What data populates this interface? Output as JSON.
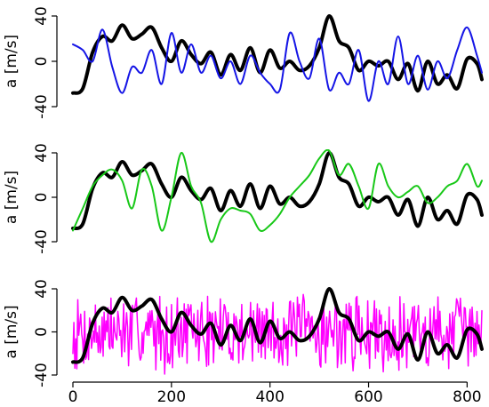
{
  "chart_data": [
    {
      "type": "line",
      "ylabel": "a [m/s]",
      "ylim": [
        -40,
        40
      ],
      "yticks": [
        -40,
        0,
        40
      ],
      "xlim": [
        0,
        830
      ],
      "series": [
        {
          "color": "#000000",
          "width": 4,
          "x": [
            0,
            20,
            40,
            60,
            80,
            100,
            120,
            140,
            160,
            180,
            200,
            220,
            240,
            260,
            280,
            300,
            320,
            340,
            360,
            380,
            400,
            420,
            440,
            460,
            480,
            500,
            520,
            540,
            560,
            580,
            600,
            620,
            640,
            660,
            680,
            700,
            720,
            740,
            760,
            780,
            800,
            820,
            830
          ],
          "y": [
            -28,
            -24,
            8,
            22,
            18,
            32,
            20,
            24,
            30,
            12,
            0,
            18,
            6,
            -2,
            8,
            -12,
            6,
            -8,
            12,
            -10,
            10,
            -6,
            0,
            -8,
            -4,
            12,
            40,
            18,
            12,
            -8,
            0,
            -4,
            0,
            -16,
            -2,
            -26,
            0,
            -20,
            -12,
            -24,
            2,
            -2,
            -16
          ]
        },
        {
          "color": "#1515e6",
          "width": 2,
          "x": [
            0,
            20,
            40,
            60,
            80,
            100,
            120,
            140,
            160,
            180,
            200,
            220,
            240,
            260,
            280,
            300,
            320,
            340,
            360,
            380,
            400,
            420,
            440,
            460,
            480,
            500,
            520,
            540,
            560,
            580,
            600,
            620,
            640,
            660,
            680,
            700,
            720,
            740,
            760,
            780,
            800,
            820,
            830
          ],
          "y": [
            15,
            10,
            0,
            28,
            -5,
            -28,
            -5,
            -10,
            10,
            -20,
            25,
            -10,
            15,
            -10,
            5,
            -15,
            0,
            -20,
            5,
            -10,
            -20,
            -25,
            25,
            0,
            -15,
            20,
            -25,
            -10,
            -20,
            10,
            -35,
            0,
            -20,
            22,
            -20,
            5,
            -25,
            0,
            -15,
            10,
            30,
            5,
            -10
          ]
        }
      ]
    },
    {
      "type": "line",
      "ylabel": "a [m/s]",
      "ylim": [
        -40,
        40
      ],
      "yticks": [
        -40,
        0,
        40
      ],
      "xlim": [
        0,
        830
      ],
      "series": [
        {
          "color": "#000000",
          "width": 4,
          "x": [
            0,
            20,
            40,
            60,
            80,
            100,
            120,
            140,
            160,
            180,
            200,
            220,
            240,
            260,
            280,
            300,
            320,
            340,
            360,
            380,
            400,
            420,
            440,
            460,
            480,
            500,
            520,
            540,
            560,
            580,
            600,
            620,
            640,
            660,
            680,
            700,
            720,
            740,
            760,
            780,
            800,
            820,
            830
          ],
          "y": [
            -28,
            -24,
            8,
            22,
            18,
            32,
            20,
            24,
            30,
            12,
            0,
            18,
            6,
            -2,
            8,
            -12,
            6,
            -8,
            12,
            -10,
            10,
            -6,
            0,
            -8,
            -4,
            12,
            40,
            18,
            12,
            -8,
            0,
            -4,
            0,
            -16,
            -2,
            -26,
            0,
            -20,
            -12,
            -24,
            2,
            -2,
            -16
          ]
        },
        {
          "color": "#18c818",
          "width": 2,
          "x": [
            0,
            20,
            40,
            60,
            80,
            100,
            120,
            140,
            160,
            180,
            200,
            220,
            240,
            260,
            280,
            300,
            320,
            340,
            360,
            380,
            400,
            420,
            440,
            460,
            480,
            500,
            520,
            540,
            560,
            580,
            600,
            620,
            640,
            660,
            680,
            700,
            720,
            740,
            760,
            780,
            800,
            820,
            830
          ],
          "y": [
            -30,
            -10,
            10,
            20,
            25,
            15,
            -10,
            25,
            10,
            -30,
            0,
            40,
            10,
            -5,
            -40,
            -20,
            -10,
            -12,
            -15,
            -30,
            -25,
            -15,
            0,
            10,
            20,
            35,
            42,
            20,
            30,
            10,
            -10,
            30,
            10,
            0,
            5,
            10,
            -5,
            0,
            10,
            15,
            30,
            10,
            15
          ]
        }
      ]
    },
    {
      "type": "line",
      "ylabel": "a [m/s]",
      "ylim": [
        -40,
        40
      ],
      "yticks": [
        -40,
        0,
        40
      ],
      "xlim": [
        0,
        830
      ],
      "xticks": [
        0,
        200,
        400,
        600,
        800
      ],
      "series": [
        {
          "color": "#ff00ff",
          "width": 1.5,
          "noise": {
            "amplitude": 40,
            "points": 420,
            "seed": 7
          }
        },
        {
          "color": "#000000",
          "width": 4,
          "x": [
            0,
            20,
            40,
            60,
            80,
            100,
            120,
            140,
            160,
            180,
            200,
            220,
            240,
            260,
            280,
            300,
            320,
            340,
            360,
            380,
            400,
            420,
            440,
            460,
            480,
            500,
            520,
            540,
            560,
            580,
            600,
            620,
            640,
            660,
            680,
            700,
            720,
            740,
            760,
            780,
            800,
            820,
            830
          ],
          "y": [
            -28,
            -24,
            8,
            22,
            18,
            32,
            20,
            24,
            30,
            12,
            0,
            18,
            6,
            -2,
            8,
            -12,
            6,
            -8,
            12,
            -10,
            10,
            -6,
            0,
            -8,
            -4,
            12,
            40,
            18,
            12,
            -8,
            0,
            -4,
            0,
            -16,
            -2,
            -26,
            0,
            -20,
            -12,
            -24,
            2,
            -2,
            -16
          ]
        }
      ]
    }
  ]
}
